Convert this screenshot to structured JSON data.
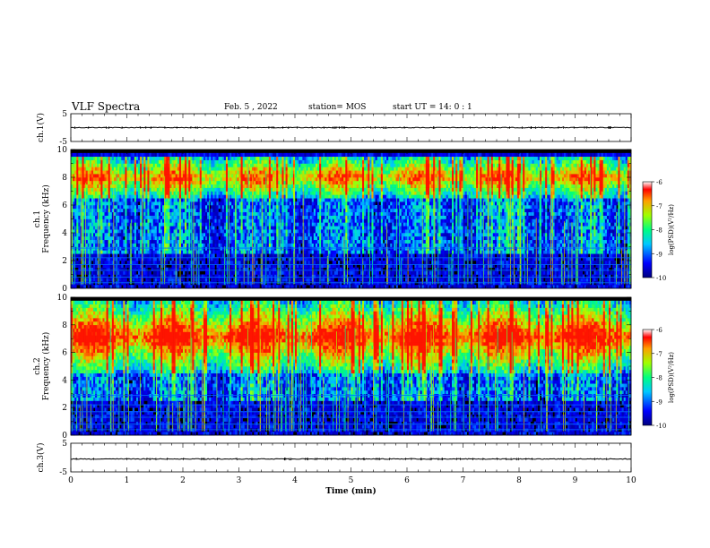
{
  "header": {
    "title": "VLF Spectra",
    "date": "Feb. 5 , 2022",
    "station": "station= MOS",
    "start": "start  UT =   14: 0  : 1"
  },
  "chart_data": [
    {
      "type": "line",
      "panel": "ch1-waveform",
      "ylabel": "ch.1(V)",
      "ylim": [
        -5,
        5
      ],
      "yticks": [
        "5",
        "-5"
      ],
      "xlim": [
        0,
        10
      ],
      "series": [
        {
          "values_desc": "flat near",
          "level": 0
        }
      ]
    },
    {
      "type": "heatmap",
      "panel": "ch1-spectrogram",
      "ylabel": "ch.1\nFrequency (kHz)",
      "ylim": [
        0,
        10
      ],
      "yticks": [
        "0",
        "2",
        "4",
        "6",
        "8",
        "10"
      ],
      "xlim": [
        0,
        10
      ],
      "bands_khz": [
        [
          6.5,
          9.5
        ],
        [
          0.2,
          1.0
        ]
      ],
      "colorbar": {
        "label": "log(PSD)(V²/Hz)",
        "range": [
          -10,
          -6
        ],
        "ticks": [
          "-6",
          "-7",
          "-8",
          "-9",
          "-10"
        ]
      }
    },
    {
      "type": "heatmap",
      "panel": "ch2-spectrogram",
      "ylabel": "ch.2\nFrequency (kHz)",
      "ylim": [
        0,
        10
      ],
      "yticks": [
        "0",
        "2",
        "4",
        "6",
        "8",
        "10"
      ],
      "xlim": [
        0,
        10
      ],
      "bands_khz": [
        [
          4.5,
          9.8
        ],
        [
          0.2,
          1.0
        ]
      ],
      "colorbar": {
        "label": "log(PSD)(V²/Hz)",
        "range": [
          -10,
          -6
        ],
        "ticks": [
          "-6",
          "-7",
          "-8",
          "-9",
          "-10"
        ]
      }
    },
    {
      "type": "line",
      "panel": "ch3-waveform",
      "ylabel": "ch.3(V)",
      "ylim": [
        -5,
        5
      ],
      "yticks": [
        "5",
        "-5"
      ],
      "xlim": [
        0,
        10
      ],
      "xlabel": "Time (min)",
      "xticks": [
        "0",
        "1",
        "2",
        "3",
        "4",
        "5",
        "6",
        "7",
        "8",
        "9",
        "10"
      ],
      "series": [
        {
          "level": -0.5
        }
      ]
    }
  ],
  "colors": {
    "frame": "#000000",
    "background": "#000000",
    "low": "#0000c0",
    "mid": "#00e0ff",
    "high": "#ff2000"
  }
}
